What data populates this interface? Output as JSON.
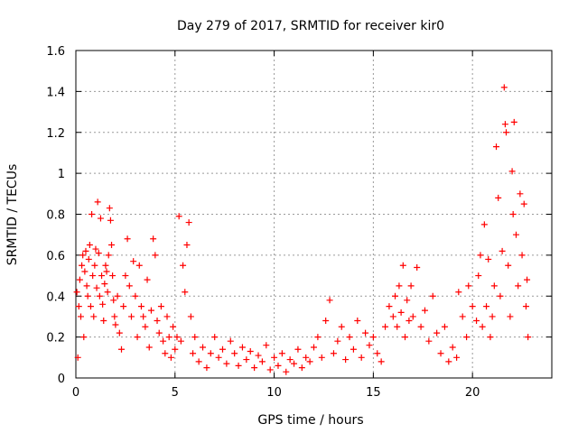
{
  "chart_data": {
    "type": "scatter",
    "title": "Day 279 of 2017, SRMTID for receiver kir0",
    "xlabel": "GPS time / hours",
    "ylabel": "SRMTID / TECUs",
    "xlim": [
      0,
      24
    ],
    "ylim": [
      0,
      1.6
    ],
    "xticks": [
      0,
      5,
      10,
      15,
      20
    ],
    "xtick_labels": [
      "0",
      "5",
      "10",
      "15",
      "20"
    ],
    "yticks": [
      0,
      0.2,
      0.4,
      0.6,
      0.8,
      1,
      1.2,
      1.4,
      1.6
    ],
    "ytick_labels": [
      "0",
      "0.2",
      "0.4",
      "0.6",
      "0.8",
      "1",
      "1.2",
      "1.4",
      "1.6"
    ],
    "grid": true,
    "marker": "plus",
    "color": "#ff0000",
    "series": [
      {
        "name": "SRMTID",
        "points": [
          [
            0.05,
            0.42
          ],
          [
            0.1,
            0.1
          ],
          [
            0.15,
            0.35
          ],
          [
            0.2,
            0.48
          ],
          [
            0.25,
            0.3
          ],
          [
            0.3,
            0.55
          ],
          [
            0.35,
            0.6
          ],
          [
            0.4,
            0.2
          ],
          [
            0.45,
            0.52
          ],
          [
            0.5,
            0.62
          ],
          [
            0.55,
            0.45
          ],
          [
            0.6,
            0.4
          ],
          [
            0.65,
            0.58
          ],
          [
            0.7,
            0.65
          ],
          [
            0.75,
            0.35
          ],
          [
            0.8,
            0.8
          ],
          [
            0.85,
            0.5
          ],
          [
            0.9,
            0.3
          ],
          [
            0.95,
            0.55
          ],
          [
            1.0,
            0.63
          ],
          [
            1.05,
            0.44
          ],
          [
            1.1,
            0.86
          ],
          [
            1.15,
            0.61
          ],
          [
            1.2,
            0.4
          ],
          [
            1.25,
            0.78
          ],
          [
            1.3,
            0.5
          ],
          [
            1.35,
            0.36
          ],
          [
            1.4,
            0.28
          ],
          [
            1.45,
            0.46
          ],
          [
            1.5,
            0.55
          ],
          [
            1.55,
            0.52
          ],
          [
            1.6,
            0.42
          ],
          [
            1.65,
            0.6
          ],
          [
            1.7,
            0.83
          ],
          [
            1.75,
            0.77
          ],
          [
            1.8,
            0.65
          ],
          [
            1.85,
            0.5
          ],
          [
            1.9,
            0.38
          ],
          [
            1.95,
            0.3
          ],
          [
            2.0,
            0.26
          ],
          [
            2.1,
            0.4
          ],
          [
            2.2,
            0.22
          ],
          [
            2.3,
            0.14
          ],
          [
            2.4,
            0.35
          ],
          [
            2.5,
            0.5
          ],
          [
            2.6,
            0.68
          ],
          [
            2.7,
            0.45
          ],
          [
            2.8,
            0.3
          ],
          [
            2.9,
            0.57
          ],
          [
            3.0,
            0.4
          ],
          [
            3.1,
            0.2
          ],
          [
            3.2,
            0.55
          ],
          [
            3.3,
            0.35
          ],
          [
            3.4,
            0.3
          ],
          [
            3.5,
            0.25
          ],
          [
            3.6,
            0.48
          ],
          [
            3.7,
            0.15
          ],
          [
            3.8,
            0.33
          ],
          [
            3.9,
            0.68
          ],
          [
            4.0,
            0.6
          ],
          [
            4.1,
            0.28
          ],
          [
            4.2,
            0.22
          ],
          [
            4.3,
            0.35
          ],
          [
            4.4,
            0.18
          ],
          [
            4.5,
            0.12
          ],
          [
            4.6,
            0.3
          ],
          [
            4.7,
            0.2
          ],
          [
            4.8,
            0.1
          ],
          [
            4.9,
            0.25
          ],
          [
            5.0,
            0.14
          ],
          [
            5.1,
            0.2
          ],
          [
            5.2,
            0.79
          ],
          [
            5.3,
            0.18
          ],
          [
            5.4,
            0.55
          ],
          [
            5.5,
            0.42
          ],
          [
            5.6,
            0.65
          ],
          [
            5.7,
            0.76
          ],
          [
            5.8,
            0.3
          ],
          [
            5.9,
            0.12
          ],
          [
            6.0,
            0.2
          ],
          [
            6.2,
            0.08
          ],
          [
            6.4,
            0.15
          ],
          [
            6.6,
            0.05
          ],
          [
            6.8,
            0.12
          ],
          [
            7.0,
            0.2
          ],
          [
            7.2,
            0.1
          ],
          [
            7.4,
            0.14
          ],
          [
            7.6,
            0.07
          ],
          [
            7.8,
            0.18
          ],
          [
            8.0,
            0.12
          ],
          [
            8.2,
            0.06
          ],
          [
            8.4,
            0.15
          ],
          [
            8.6,
            0.09
          ],
          [
            8.8,
            0.13
          ],
          [
            9.0,
            0.05
          ],
          [
            9.2,
            0.11
          ],
          [
            9.4,
            0.08
          ],
          [
            9.6,
            0.16
          ],
          [
            9.8,
            0.04
          ],
          [
            10.0,
            0.1
          ],
          [
            10.2,
            0.06
          ],
          [
            10.4,
            0.12
          ],
          [
            10.6,
            0.03
          ],
          [
            10.8,
            0.09
          ],
          [
            11.0,
            0.07
          ],
          [
            11.2,
            0.14
          ],
          [
            11.4,
            0.05
          ],
          [
            11.6,
            0.1
          ],
          [
            11.8,
            0.08
          ],
          [
            12.0,
            0.15
          ],
          [
            12.2,
            0.2
          ],
          [
            12.4,
            0.1
          ],
          [
            12.6,
            0.28
          ],
          [
            12.8,
            0.38
          ],
          [
            13.0,
            0.12
          ],
          [
            13.2,
            0.18
          ],
          [
            13.4,
            0.25
          ],
          [
            13.6,
            0.09
          ],
          [
            13.8,
            0.2
          ],
          [
            14.0,
            0.14
          ],
          [
            14.2,
            0.28
          ],
          [
            14.4,
            0.1
          ],
          [
            14.6,
            0.22
          ],
          [
            14.8,
            0.16
          ],
          [
            15.0,
            0.2
          ],
          [
            15.2,
            0.12
          ],
          [
            15.4,
            0.08
          ],
          [
            15.6,
            0.25
          ],
          [
            15.8,
            0.35
          ],
          [
            16.0,
            0.3
          ],
          [
            16.1,
            0.4
          ],
          [
            16.2,
            0.25
          ],
          [
            16.3,
            0.45
          ],
          [
            16.4,
            0.32
          ],
          [
            16.5,
            0.55
          ],
          [
            16.6,
            0.2
          ],
          [
            16.7,
            0.38
          ],
          [
            16.8,
            0.28
          ],
          [
            16.9,
            0.45
          ],
          [
            17.0,
            0.3
          ],
          [
            17.2,
            0.54
          ],
          [
            17.4,
            0.25
          ],
          [
            17.6,
            0.33
          ],
          [
            17.8,
            0.18
          ],
          [
            18.0,
            0.4
          ],
          [
            18.2,
            0.22
          ],
          [
            18.4,
            0.12
          ],
          [
            18.6,
            0.25
          ],
          [
            18.8,
            0.08
          ],
          [
            19.0,
            0.15
          ],
          [
            19.2,
            0.1
          ],
          [
            19.3,
            0.42
          ],
          [
            19.5,
            0.3
          ],
          [
            19.7,
            0.2
          ],
          [
            19.8,
            0.45
          ],
          [
            20.0,
            0.35
          ],
          [
            20.2,
            0.28
          ],
          [
            20.3,
            0.5
          ],
          [
            20.4,
            0.6
          ],
          [
            20.5,
            0.25
          ],
          [
            20.6,
            0.75
          ],
          [
            20.7,
            0.35
          ],
          [
            20.8,
            0.58
          ],
          [
            20.9,
            0.2
          ],
          [
            21.0,
            0.3
          ],
          [
            21.1,
            0.45
          ],
          [
            21.2,
            1.13
          ],
          [
            21.3,
            0.88
          ],
          [
            21.4,
            0.4
          ],
          [
            21.5,
            0.62
          ],
          [
            21.6,
            1.42
          ],
          [
            21.65,
            1.24
          ],
          [
            21.7,
            1.2
          ],
          [
            21.8,
            0.55
          ],
          [
            21.9,
            0.3
          ],
          [
            22.0,
            1.01
          ],
          [
            22.05,
            0.8
          ],
          [
            22.1,
            1.25
          ],
          [
            22.2,
            0.7
          ],
          [
            22.3,
            0.45
          ],
          [
            22.4,
            0.9
          ],
          [
            22.5,
            0.6
          ],
          [
            22.6,
            0.85
          ],
          [
            22.7,
            0.35
          ],
          [
            22.75,
            0.48
          ],
          [
            22.8,
            0.2
          ]
        ]
      }
    ]
  }
}
